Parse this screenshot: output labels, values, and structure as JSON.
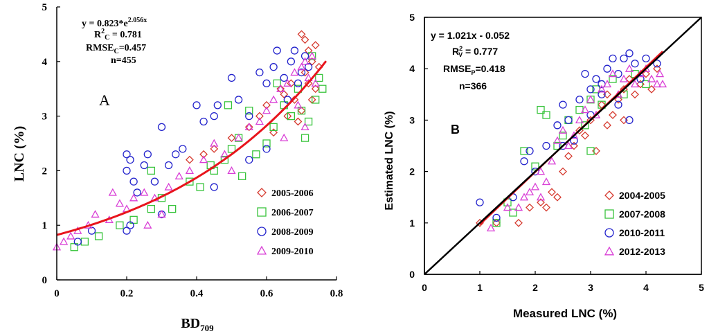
{
  "chart_data": [
    {
      "type": "scatter",
      "panel_label": "A",
      "xlabel": "BD",
      "xlabel_sub": "709",
      "ylabel": "LNC (%)",
      "xlim": [
        0,
        0.8
      ],
      "ylim": [
        0,
        5
      ],
      "x_ticks": [
        "0",
        "0.2",
        "0.4",
        "0.6",
        "0.8"
      ],
      "y_ticks": [
        "0",
        "1",
        "2",
        "3",
        "4",
        "5"
      ],
      "annotation": {
        "eq_prefix": "y = 0.823*e",
        "eq_exp": "2.056x",
        "r2_prefix": "R",
        "r2_sup": "2",
        "r2_sub": "C",
        "r2_value": " = 0.781",
        "rmse_prefix": "RMSE",
        "rmse_sub": "C",
        "rmse_value": "=0.457",
        "n": "n=455"
      },
      "fit": {
        "type": "exponential",
        "a": 0.823,
        "b": 2.056,
        "x_range": [
          0,
          0.77
        ],
        "color": "#e8141c"
      },
      "legend": [
        {
          "label": "2005-2006",
          "marker": "diamond",
          "color": "#d63a2f"
        },
        {
          "label": "2006-2007",
          "marker": "square",
          "color": "#38c43c"
        },
        {
          "label": "2008-2009",
          "marker": "circle",
          "color": "#2222cc"
        },
        {
          "label": "2009-2010",
          "marker": "triangle",
          "color": "#d93fd6"
        }
      ],
      "series": [
        {
          "name": "2005-2006",
          "points": [
            [
              0.38,
              2.2
            ],
            [
              0.42,
              2.3
            ],
            [
              0.45,
              2.4
            ],
            [
              0.5,
              2.6
            ],
            [
              0.55,
              2.8
            ],
            [
              0.58,
              3.0
            ],
            [
              0.6,
              3.2
            ],
            [
              0.62,
              2.7
            ],
            [
              0.65,
              3.4
            ],
            [
              0.67,
              3.6
            ],
            [
              0.68,
              3.3
            ],
            [
              0.7,
              4.5
            ],
            [
              0.71,
              3.8
            ],
            [
              0.72,
              4.2
            ],
            [
              0.73,
              4.0
            ],
            [
              0.74,
              4.3
            ],
            [
              0.75,
              3.9
            ],
            [
              0.72,
              3.6
            ],
            [
              0.69,
              2.9
            ],
            [
              0.7,
              3.1
            ],
            [
              0.73,
              3.3
            ],
            [
              0.66,
              3.0
            ],
            [
              0.64,
              3.5
            ],
            [
              0.71,
              4.4
            ],
            [
              0.74,
              3.5
            ]
          ]
        },
        {
          "name": "2006-2007",
          "points": [
            [
              0.05,
              0.6
            ],
            [
              0.08,
              0.7
            ],
            [
              0.12,
              0.8
            ],
            [
              0.18,
              1.0
            ],
            [
              0.22,
              1.1
            ],
            [
              0.27,
              1.3
            ],
            [
              0.3,
              1.5
            ],
            [
              0.33,
              1.3
            ],
            [
              0.38,
              1.8
            ],
            [
              0.41,
              1.7
            ],
            [
              0.45,
              2.0
            ],
            [
              0.48,
              2.2
            ],
            [
              0.5,
              2.4
            ],
            [
              0.52,
              2.6
            ],
            [
              0.55,
              3.1
            ],
            [
              0.57,
              2.3
            ],
            [
              0.6,
              2.5
            ],
            [
              0.62,
              2.8
            ],
            [
              0.65,
              3.2
            ],
            [
              0.67,
              3.0
            ],
            [
              0.69,
              3.5
            ],
            [
              0.7,
              3.1
            ],
            [
              0.72,
              2.9
            ],
            [
              0.74,
              3.3
            ],
            [
              0.75,
              3.7
            ],
            [
              0.76,
              3.5
            ],
            [
              0.73,
              4.1
            ],
            [
              0.71,
              2.6
            ],
            [
              0.49,
              3.2
            ],
            [
              0.44,
              2.1
            ],
            [
              0.53,
              1.9
            ],
            [
              0.27,
              2.0
            ],
            [
              0.63,
              3.6
            ]
          ]
        },
        {
          "name": "2008-2009",
          "points": [
            [
              0.06,
              0.7
            ],
            [
              0.1,
              0.9
            ],
            [
              0.2,
              2.3
            ],
            [
              0.2,
              2.0
            ],
            [
              0.21,
              2.2
            ],
            [
              0.22,
              1.8
            ],
            [
              0.23,
              1.6
            ],
            [
              0.25,
              2.1
            ],
            [
              0.26,
              2.3
            ],
            [
              0.28,
              1.8
            ],
            [
              0.3,
              2.8
            ],
            [
              0.32,
              2.1
            ],
            [
              0.34,
              2.3
            ],
            [
              0.36,
              2.4
            ],
            [
              0.4,
              3.2
            ],
            [
              0.42,
              2.9
            ],
            [
              0.45,
              3.0
            ],
            [
              0.46,
              3.2
            ],
            [
              0.5,
              3.7
            ],
            [
              0.52,
              3.3
            ],
            [
              0.55,
              3.0
            ],
            [
              0.58,
              3.8
            ],
            [
              0.6,
              3.6
            ],
            [
              0.62,
              3.9
            ],
            [
              0.63,
              4.2
            ],
            [
              0.65,
              3.7
            ],
            [
              0.67,
              4.0
            ],
            [
              0.68,
              4.2
            ],
            [
              0.7,
              3.8
            ],
            [
              0.71,
              4.1
            ],
            [
              0.72,
              3.9
            ],
            [
              0.2,
              0.9
            ],
            [
              0.21,
              1.0
            ],
            [
              0.3,
              1.2
            ],
            [
              0.45,
              1.7
            ],
            [
              0.55,
              2.2
            ],
            [
              0.6,
              2.4
            ],
            [
              0.66,
              3.3
            ],
            [
              0.69,
              3.6
            ]
          ]
        },
        {
          "name": "2009-2010",
          "points": [
            [
              0.0,
              0.6
            ],
            [
              0.02,
              0.7
            ],
            [
              0.04,
              0.8
            ],
            [
              0.06,
              0.9
            ],
            [
              0.09,
              1.0
            ],
            [
              0.11,
              1.2
            ],
            [
              0.15,
              1.1
            ],
            [
              0.18,
              1.4
            ],
            [
              0.2,
              1.3
            ],
            [
              0.22,
              1.5
            ],
            [
              0.25,
              1.6
            ],
            [
              0.28,
              1.5
            ],
            [
              0.32,
              1.7
            ],
            [
              0.35,
              1.9
            ],
            [
              0.38,
              2.0
            ],
            [
              0.42,
              2.2
            ],
            [
              0.45,
              2.5
            ],
            [
              0.48,
              2.3
            ],
            [
              0.52,
              2.6
            ],
            [
              0.55,
              2.8
            ],
            [
              0.58,
              2.9
            ],
            [
              0.6,
              3.1
            ],
            [
              0.62,
              3.3
            ],
            [
              0.64,
              3.5
            ],
            [
              0.66,
              3.6
            ],
            [
              0.68,
              3.8
            ],
            [
              0.7,
              3.9
            ],
            [
              0.71,
              4.0
            ],
            [
              0.72,
              3.7
            ],
            [
              0.73,
              4.1
            ],
            [
              0.74,
              3.6
            ],
            [
              0.69,
              3.2
            ],
            [
              0.71,
              2.8
            ],
            [
              0.3,
              1.2
            ],
            [
              0.16,
              1.6
            ],
            [
              0.26,
              1.0
            ],
            [
              0.5,
              2.0
            ],
            [
              0.65,
              2.6
            ]
          ]
        }
      ]
    },
    {
      "type": "scatter",
      "panel_label": "B",
      "xlabel": "Measured LNC (%)",
      "ylabel": "Estimated LNC (%)",
      "xlim": [
        0,
        5
      ],
      "ylim": [
        0,
        5
      ],
      "x_ticks": [
        "0",
        "1",
        "2",
        "3",
        "4",
        "5"
      ],
      "y_ticks": [
        "0",
        "1",
        "2",
        "3",
        "4",
        "5"
      ],
      "annotation": {
        "eq": "y = 1.021x - 0.052",
        "r2_prefix": "R",
        "r2_sup": "2",
        "r2_sub": "V",
        "r2_value": " = 0.777",
        "rmse_prefix": "RMSE",
        "rmse_sub": "P",
        "rmse_value": "=0.418",
        "n": "n=366"
      },
      "one_to_one": {
        "x_range": [
          0,
          5
        ],
        "color": "#000000"
      },
      "fit": {
        "type": "linear",
        "slope": 1.021,
        "intercept": -0.052,
        "x_range": [
          1.0,
          4.3
        ],
        "color": "#e8141c"
      },
      "legend": [
        {
          "label": "2004-2005",
          "marker": "diamond",
          "color": "#d63a2f"
        },
        {
          "label": "2007-2008",
          "marker": "square",
          "color": "#38c43c"
        },
        {
          "label": "2010-2011",
          "marker": "circle",
          "color": "#2222cc"
        },
        {
          "label": "2012-2013",
          "marker": "triangle",
          "color": "#d93fd6"
        }
      ],
      "series": [
        {
          "name": "2004-2005",
          "points": [
            [
              1.0,
              1.0
            ],
            [
              1.3,
              1.0
            ],
            [
              1.7,
              1.0
            ],
            [
              1.9,
              1.3
            ],
            [
              2.1,
              1.4
            ],
            [
              2.3,
              1.6
            ],
            [
              2.5,
              2.0
            ],
            [
              2.6,
              2.3
            ],
            [
              2.7,
              2.5
            ],
            [
              2.8,
              2.8
            ],
            [
              2.9,
              2.7
            ],
            [
              3.0,
              3.0
            ],
            [
              3.1,
              2.4
            ],
            [
              3.2,
              3.3
            ],
            [
              3.3,
              3.5
            ],
            [
              3.4,
              3.1
            ],
            [
              3.5,
              3.4
            ],
            [
              3.6,
              3.6
            ],
            [
              3.7,
              3.8
            ],
            [
              3.8,
              3.5
            ],
            [
              3.9,
              3.7
            ],
            [
              4.0,
              3.9
            ],
            [
              4.1,
              3.6
            ],
            [
              4.2,
              4.0
            ],
            [
              2.4,
              1.5
            ],
            [
              2.2,
              1.3
            ],
            [
              3.3,
              2.9
            ],
            [
              3.6,
              3.0
            ]
          ]
        },
        {
          "name": "2007-2008",
          "points": [
            [
              1.3,
              1.0
            ],
            [
              1.5,
              1.4
            ],
            [
              1.6,
              1.2
            ],
            [
              1.8,
              2.4
            ],
            [
              2.0,
              2.1
            ],
            [
              2.2,
              3.1
            ],
            [
              2.5,
              2.7
            ],
            [
              2.6,
              3.0
            ],
            [
              2.8,
              3.2
            ],
            [
              2.9,
              2.9
            ],
            [
              3.0,
              3.4
            ],
            [
              3.1,
              3.6
            ],
            [
              3.2,
              3.3
            ],
            [
              3.4,
              3.8
            ],
            [
              3.6,
              3.5
            ],
            [
              3.8,
              3.9
            ],
            [
              4.0,
              3.7
            ],
            [
              2.1,
              3.2
            ],
            [
              2.4,
              2.5
            ],
            [
              3.0,
              2.4
            ]
          ]
        },
        {
          "name": "2010-2011",
          "points": [
            [
              1.0,
              1.4
            ],
            [
              1.3,
              1.1
            ],
            [
              1.6,
              1.5
            ],
            [
              1.9,
              2.4
            ],
            [
              2.0,
              2.0
            ],
            [
              2.2,
              2.5
            ],
            [
              2.4,
              2.9
            ],
            [
              2.5,
              3.3
            ],
            [
              2.6,
              3.0
            ],
            [
              2.7,
              2.6
            ],
            [
              2.8,
              3.4
            ],
            [
              2.9,
              3.9
            ],
            [
              3.0,
              3.6
            ],
            [
              3.1,
              3.8
            ],
            [
              3.2,
              3.5
            ],
            [
              3.3,
              4.0
            ],
            [
              3.4,
              4.2
            ],
            [
              3.5,
              3.9
            ],
            [
              3.6,
              4.2
            ],
            [
              3.7,
              4.3
            ],
            [
              3.8,
              4.1
            ],
            [
              3.9,
              3.8
            ],
            [
              4.0,
              4.2
            ],
            [
              4.2,
              4.1
            ],
            [
              3.0,
              3.1
            ],
            [
              3.5,
              3.3
            ],
            [
              2.5,
              2.5
            ],
            [
              3.2,
              3.7
            ],
            [
              3.7,
              3.0
            ],
            [
              1.8,
              2.2
            ]
          ]
        },
        {
          "name": "2012-2013",
          "points": [
            [
              1.2,
              0.9
            ],
            [
              1.5,
              1.3
            ],
            [
              1.8,
              1.5
            ],
            [
              1.9,
              1.6
            ],
            [
              2.0,
              1.7
            ],
            [
              2.1,
              2.0
            ],
            [
              2.2,
              1.8
            ],
            [
              2.3,
              2.2
            ],
            [
              2.4,
              2.6
            ],
            [
              2.5,
              2.8
            ],
            [
              2.6,
              2.5
            ],
            [
              2.7,
              2.7
            ],
            [
              2.8,
              3.0
            ],
            [
              2.9,
              3.2
            ],
            [
              3.0,
              3.4
            ],
            [
              3.1,
              3.1
            ],
            [
              3.2,
              3.6
            ],
            [
              3.3,
              3.7
            ],
            [
              3.4,
              3.9
            ],
            [
              3.5,
              3.5
            ],
            [
              3.6,
              3.8
            ],
            [
              3.7,
              4.0
            ],
            [
              3.8,
              3.7
            ],
            [
              3.9,
              3.9
            ],
            [
              4.0,
              4.0
            ],
            [
              4.1,
              3.8
            ],
            [
              4.2,
              3.7
            ],
            [
              4.25,
              3.9
            ],
            [
              4.3,
              3.7
            ],
            [
              2.1,
              1.5
            ],
            [
              1.7,
              1.3
            ]
          ]
        }
      ]
    }
  ]
}
